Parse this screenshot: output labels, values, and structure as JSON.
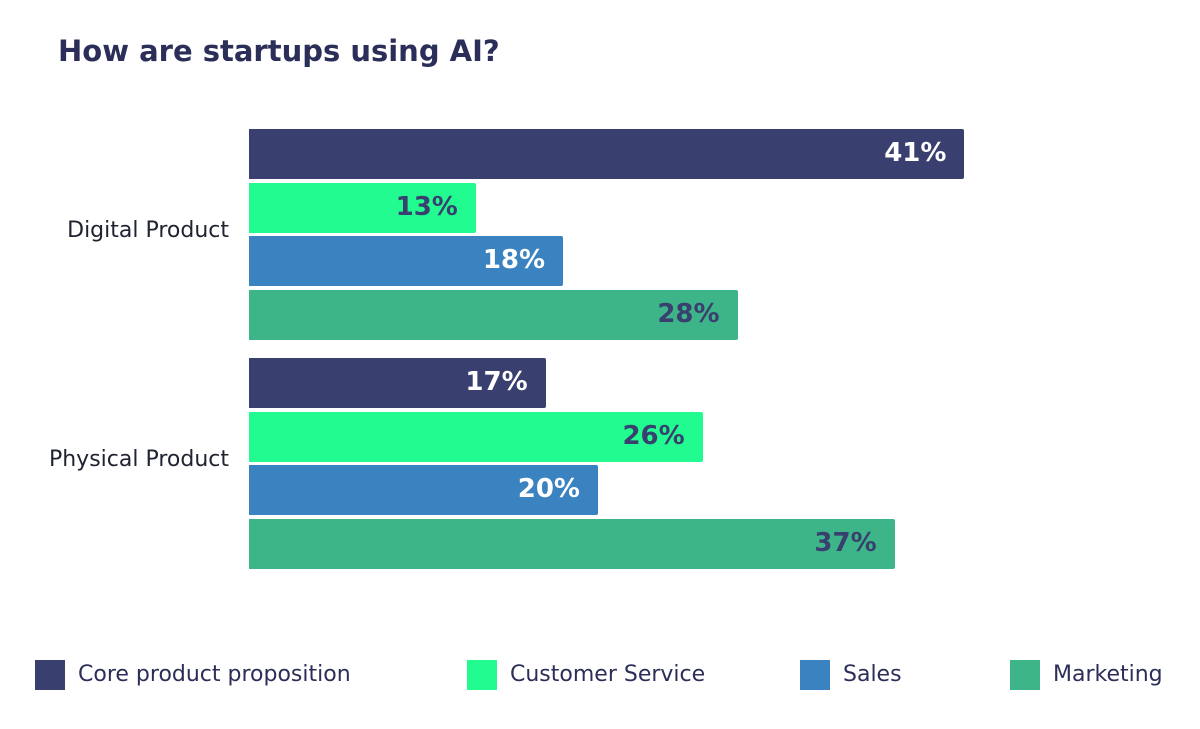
{
  "chart_data": {
    "type": "bar",
    "orientation": "horizontal",
    "title": "How are startups using AI?",
    "categories": [
      "Digital Product",
      "Physical Product"
    ],
    "series": [
      {
        "name": "Core product proposition",
        "color": "#393f6e",
        "label_color": "#ffffff",
        "values": [
          41,
          17
        ]
      },
      {
        "name": "Customer Service",
        "color": "#22fb8f",
        "label_color": "#393f6e",
        "values": [
          13,
          26
        ]
      },
      {
        "name": "Sales",
        "color": "#3b82c0",
        "label_color": "#ffffff",
        "values": [
          18,
          20
        ]
      },
      {
        "name": "Marketing",
        "color": "#3eb489",
        "label_color": "#393f6e",
        "values": [
          28,
          37
        ]
      }
    ],
    "value_suffix": "%",
    "xlim": [
      0,
      54.5
    ],
    "grid": false,
    "legend": "bottom"
  }
}
